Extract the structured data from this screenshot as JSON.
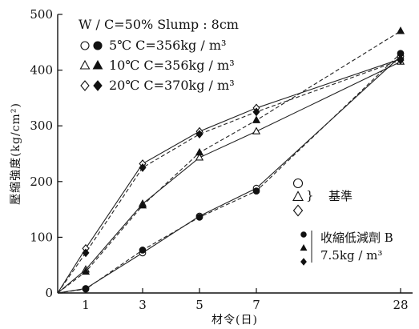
{
  "chart_data": {
    "type": "line",
    "xlabel": "材令(日)",
    "ylabel": "壓縮強度(kg/cm²)",
    "x_ticks": [
      "1",
      "3",
      "5",
      "7",
      "28"
    ],
    "x_positions": [
      1,
      3,
      5,
      7,
      28
    ],
    "y_ticks": [
      "0",
      "100",
      "200",
      "300",
      "400",
      "500"
    ],
    "ylim": [
      0,
      500
    ],
    "legend_header": "W / C=50% Slump : 8cm",
    "legend": [
      {
        "symbols": "○●",
        "label": "5℃ C=356kg / m³"
      },
      {
        "symbols": "△▲",
        "label": "10℃ C=356kg / m³"
      },
      {
        "symbols": "◇◆",
        "label": "20℃ C=370kg / m³"
      }
    ],
    "annotation_open_symbols": [
      "○",
      "△",
      "◇"
    ],
    "annotation_open_label": "基準",
    "annotation_filled_label_1": "收縮低減劑 B",
    "annotation_filled_label_2": "7.5kg / m³",
    "series": [
      {
        "temp": "5℃",
        "kind": "基準",
        "marker": "circle-open",
        "dash": "solid",
        "x": [
          0,
          1,
          3,
          5,
          7,
          28
        ],
        "y": [
          0,
          8,
          72,
          138,
          188,
          425
        ]
      },
      {
        "temp": "5℃",
        "kind": "收縮低減劑 B",
        "marker": "circle-filled",
        "dash": "dashed",
        "x": [
          0,
          1,
          3,
          5,
          7,
          28
        ],
        "y": [
          0,
          7,
          77,
          136,
          183,
          430
        ]
      },
      {
        "temp": "10℃",
        "kind": "基準",
        "marker": "triangle-open",
        "dash": "solid",
        "x": [
          0,
          1,
          3,
          5,
          7,
          28
        ],
        "y": [
          0,
          42,
          160,
          243,
          290,
          415
        ]
      },
      {
        "temp": "10℃",
        "kind": "收縮低減劑 B",
        "marker": "triangle-filled",
        "dash": "dashed",
        "x": [
          0,
          1,
          3,
          5,
          7,
          28
        ],
        "y": [
          0,
          38,
          157,
          252,
          310,
          470
        ]
      },
      {
        "temp": "20℃",
        "kind": "基準",
        "marker": "diamond-open",
        "dash": "solid",
        "x": [
          0,
          1,
          3,
          5,
          7,
          28
        ],
        "y": [
          0,
          80,
          232,
          290,
          332,
          420
        ]
      },
      {
        "temp": "20℃",
        "kind": "收縮低減劑 B",
        "marker": "diamond-filled",
        "dash": "dashed",
        "x": [
          0,
          1,
          3,
          5,
          7,
          28
        ],
        "y": [
          0,
          72,
          225,
          285,
          325,
          418
        ]
      }
    ]
  }
}
